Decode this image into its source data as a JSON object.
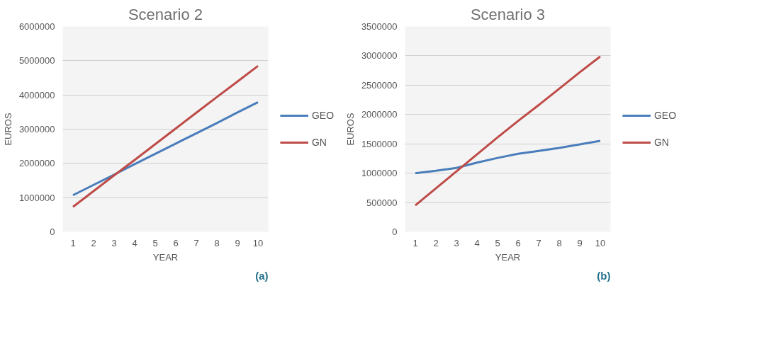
{
  "chart_data": [
    {
      "type": "line",
      "title": "Scenario 2",
      "xlabel": "YEAR",
      "ylabel": "EUROS",
      "categories": [
        "1",
        "2",
        "3",
        "4",
        "5",
        "6",
        "7",
        "8",
        "9",
        "10"
      ],
      "series": [
        {
          "name": "GEO",
          "color": "#4a7ebb",
          "values": [
            1070000,
            1370000,
            1670000,
            1980000,
            2280000,
            2580000,
            2880000,
            3180000,
            3490000,
            3790000
          ]
        },
        {
          "name": "GN",
          "color": "#be4b48",
          "values": [
            730000,
            1190000,
            1650000,
            2100000,
            2560000,
            3020000,
            3480000,
            3940000,
            4390000,
            4850000
          ]
        }
      ],
      "ylim": [
        0,
        6000000
      ],
      "yticks": [
        0,
        1000000,
        2000000,
        3000000,
        4000000,
        5000000,
        6000000
      ],
      "grid": "y",
      "legend": "right",
      "annotations": [
        "(a)"
      ]
    },
    {
      "type": "line",
      "title": "Scenario 3",
      "xlabel": "YEAR",
      "ylabel": "EUROS",
      "categories": [
        "1",
        "2",
        "3",
        "4",
        "5",
        "6",
        "7",
        "8",
        "9",
        "10"
      ],
      "series": [
        {
          "name": "GEO",
          "color": "#4a7ebb",
          "values": [
            1000000,
            1040000,
            1090000,
            1180000,
            1260000,
            1330000,
            1380000,
            1430000,
            1490000,
            1550000
          ]
        },
        {
          "name": "GN",
          "color": "#be4b48",
          "values": [
            450000,
            740000,
            1030000,
            1320000,
            1610000,
            1890000,
            2160000,
            2440000,
            2720000,
            2990000
          ]
        }
      ],
      "ylim": [
        0,
        3500000
      ],
      "yticks": [
        0,
        500000,
        1000000,
        1500000,
        2000000,
        2500000,
        3000000,
        3500000
      ],
      "grid": "y",
      "legend": "right",
      "annotations": [
        "(b)"
      ]
    }
  ]
}
